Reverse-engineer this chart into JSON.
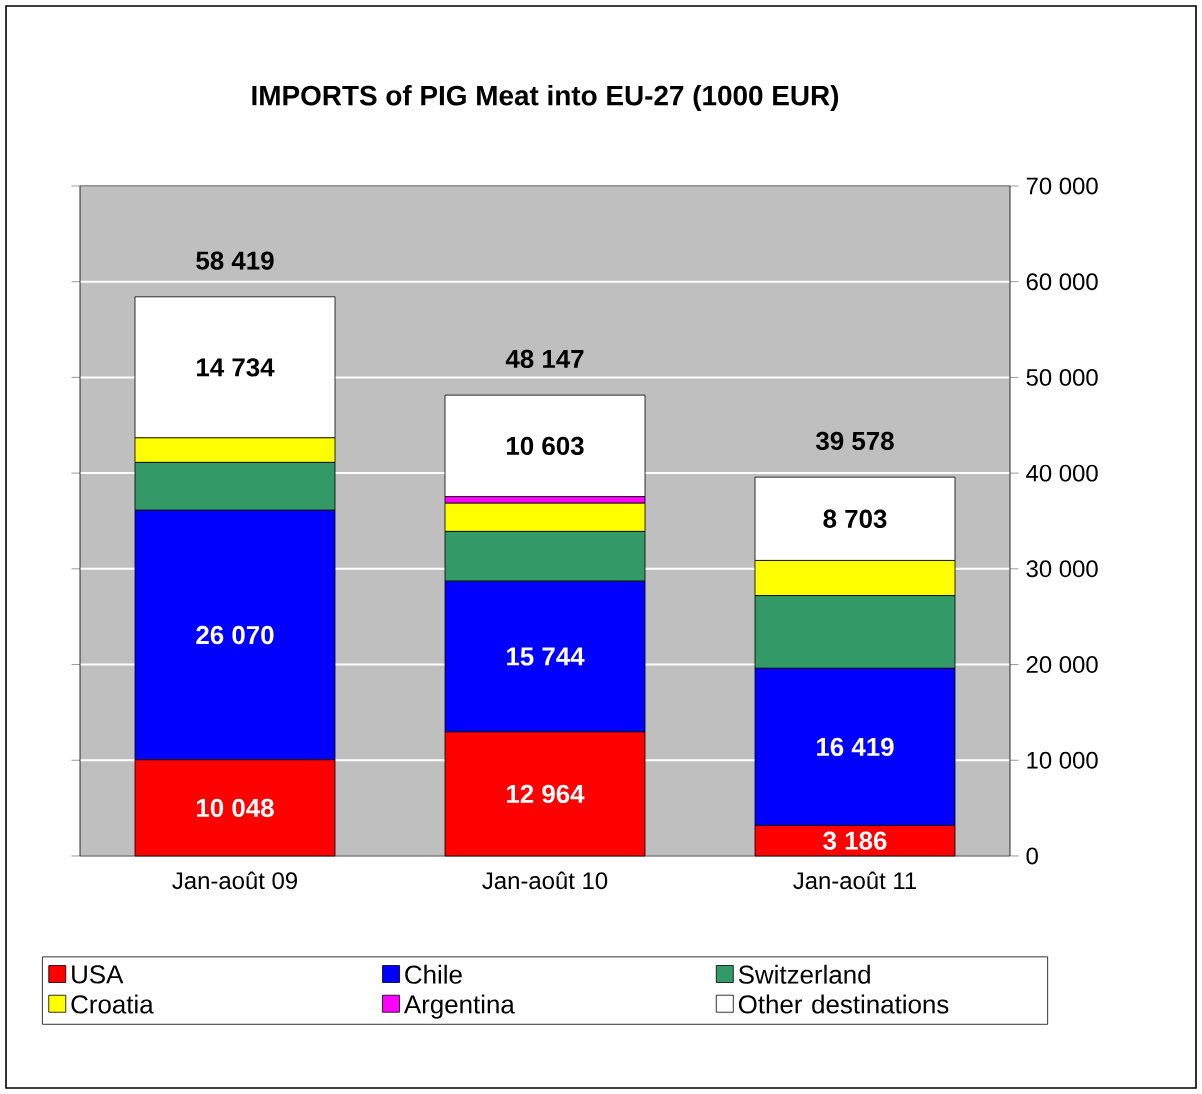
{
  "chart_data": {
    "type": "bar",
    "title": "IMPORTS of PIG Meat into EU-27 (1000 EUR)",
    "stacked": true,
    "categories": [
      "Jan-août 09",
      "Jan-août 10",
      "Jan-août 11"
    ],
    "series": [
      {
        "name": "USA",
        "color": "#ff0000",
        "values": [
          10048,
          12964,
          3186
        ],
        "value_labels": [
          "10 048",
          "12 964",
          "3 186"
        ]
      },
      {
        "name": "Chile",
        "color": "#0000ff",
        "values": [
          26070,
          15744,
          16419
        ],
        "value_labels": [
          "26 070",
          "15 744",
          "16 419"
        ]
      },
      {
        "name": "Switzerland",
        "color": "#339966",
        "values": [
          5000,
          5200,
          7600
        ]
      },
      {
        "name": "Croatia",
        "color": "#ffff00",
        "values": [
          2567,
          2950,
          3670
        ]
      },
      {
        "name": "Argentina",
        "color": "#ff00ff",
        "values": [
          null,
          686,
          null
        ]
      },
      {
        "name": "Other destinations",
        "color": "#ffffff",
        "values": [
          14734,
          10603,
          8703
        ],
        "value_labels": [
          "14 734",
          "10 603",
          "8 703"
        ]
      }
    ],
    "totals": [
      "58 419",
      "48 147",
      "39 578"
    ],
    "ylim": [
      0,
      70000
    ],
    "yticks": [
      {
        "value": 0,
        "label": "0"
      },
      {
        "value": 10000,
        "label": "10 000"
      },
      {
        "value": 20000,
        "label": "20 000"
      },
      {
        "value": 30000,
        "label": "30 000"
      },
      {
        "value": 40000,
        "label": "40 000"
      },
      {
        "value": 50000,
        "label": "50 000"
      },
      {
        "value": 60000,
        "label": "60 000"
      },
      {
        "value": 70000,
        "label": "70 000"
      }
    ],
    "grid": "y",
    "legend": "bottom"
  }
}
